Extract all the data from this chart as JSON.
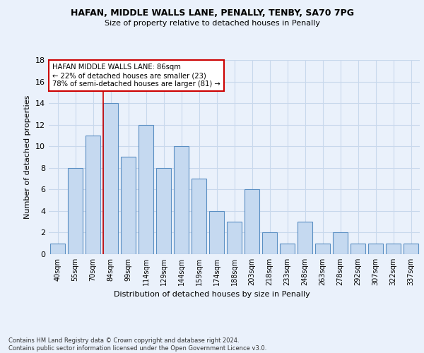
{
  "title1": "HAFAN, MIDDLE WALLS LANE, PENALLY, TENBY, SA70 7PG",
  "title2": "Size of property relative to detached houses in Penally",
  "xlabel": "Distribution of detached houses by size in Penally",
  "ylabel": "Number of detached properties",
  "categories": [
    "40sqm",
    "55sqm",
    "70sqm",
    "84sqm",
    "99sqm",
    "114sqm",
    "129sqm",
    "144sqm",
    "159sqm",
    "174sqm",
    "188sqm",
    "203sqm",
    "218sqm",
    "233sqm",
    "248sqm",
    "263sqm",
    "278sqm",
    "292sqm",
    "307sqm",
    "322sqm",
    "337sqm"
  ],
  "values": [
    1,
    8,
    11,
    14,
    9,
    12,
    8,
    10,
    7,
    4,
    3,
    6,
    2,
    1,
    3,
    1,
    2,
    1,
    1,
    1,
    1
  ],
  "bar_color": "#c5d9f0",
  "bar_edge_color": "#5a8fc3",
  "annotation_text": "HAFAN MIDDLE WALLS LANE: 86sqm\n← 22% of detached houses are smaller (23)\n78% of semi-detached houses are larger (81) →",
  "annotation_box_color": "#ffffff",
  "annotation_box_edge": "#cc0000",
  "vline_color": "#cc0000",
  "footer": "Contains HM Land Registry data © Crown copyright and database right 2024.\nContains public sector information licensed under the Open Government Licence v3.0.",
  "ylim": [
    0,
    18
  ],
  "bg_color": "#eaf1fb",
  "plot_bg": "#eaf1fb",
  "grid_color": "#c8d8ec",
  "title_fontsize": 9,
  "subtitle_fontsize": 8
}
